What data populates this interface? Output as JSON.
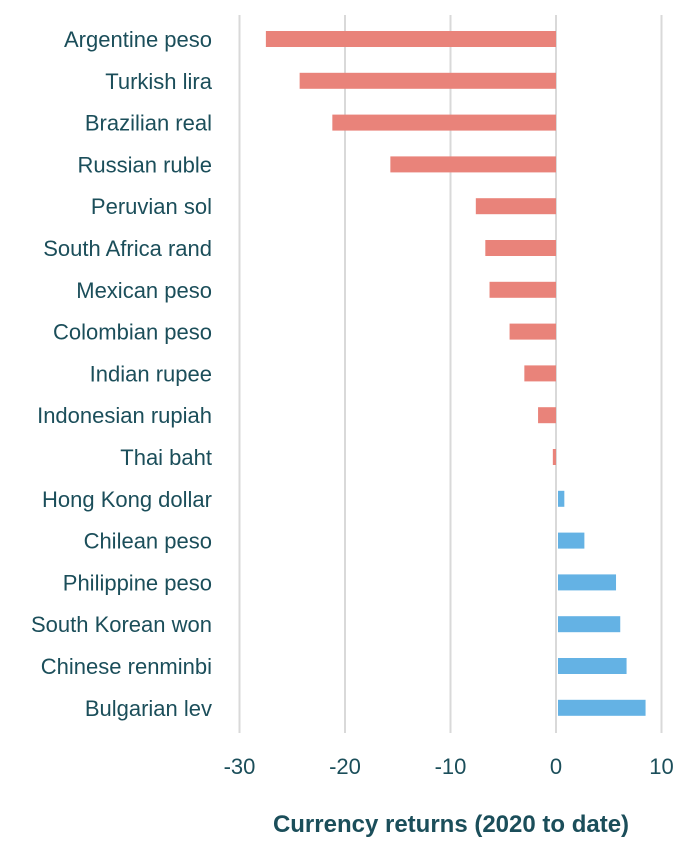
{
  "chart_data": {
    "type": "bar",
    "orientation": "horizontal",
    "title": "",
    "xlabel": "Currency returns (2020 to date)",
    "ylabel": "",
    "xlim": [
      -32,
      11
    ],
    "xticks": [
      -30,
      -20,
      -10,
      0,
      10
    ],
    "xtick_labels": [
      "-30",
      "-20",
      "-10",
      "0",
      "10"
    ],
    "grid": true,
    "legend": false,
    "categories": [
      "Argentine peso",
      "Turkish lira",
      "Brazilian real",
      "Russian ruble",
      "Peruvian sol",
      "South Africa rand",
      "Mexican peso",
      "Colombian peso",
      "Indian rupee",
      "Indonesian rupiah",
      "Thai baht",
      "Hong Kong dollar",
      "Chilean peso",
      "Philippine peso",
      "South Korean won",
      "Chinese renminbi",
      "Bulgarian lev"
    ],
    "values": [
      -27.5,
      -24.3,
      -21.2,
      -15.7,
      -7.6,
      -6.7,
      -6.3,
      -4.4,
      -3.0,
      -1.7,
      -0.3,
      0.6,
      2.5,
      5.5,
      5.9,
      6.5,
      8.3
    ],
    "colors": {
      "negative": "#e9837a",
      "positive": "#64b2e4"
    }
  }
}
